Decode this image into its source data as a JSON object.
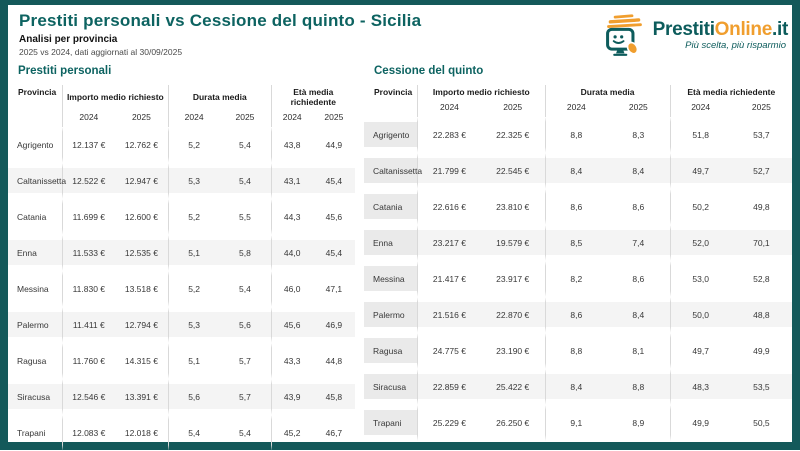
{
  "page": {
    "title": "Prestiti personali vs Cessione del quinto - Sicilia",
    "subtitle": "Analisi per provincia",
    "note": "2025 vs 2024, dati aggiornati al 30/09/2025"
  },
  "logo": {
    "brand_prefix": "Prestiti",
    "brand_highlight": "Online",
    "brand_suffix": ".it",
    "tagline": "Più scelta, più risparmio",
    "mascot_icon": "smiley-monitor-with-mouse-icon"
  },
  "colors": {
    "teal": "#0d6361",
    "border_teal": "#14595a",
    "orange": "#f09e2e",
    "row_stripe": "#f4f4f4",
    "province_column_bg": "#eaeaea",
    "separator": "#d9d9d9"
  },
  "tables": [
    {
      "title": "Prestiti personali",
      "columns": {
        "province": "Provincia",
        "groups": [
          "Importo medio richiesto",
          "Durata media",
          "Età media richiedente"
        ],
        "years": [
          "2024",
          "2025"
        ]
      },
      "rows": [
        {
          "province": "Agrigento",
          "values": [
            "12.137 €",
            "12.762 €",
            "5,2",
            "5,4",
            "43,8",
            "44,9"
          ]
        },
        {
          "province": "Caltanissetta",
          "values": [
            "12.522 €",
            "12.947 €",
            "5,3",
            "5,4",
            "43,1",
            "45,4"
          ]
        },
        {
          "province": "Catania",
          "values": [
            "11.699 €",
            "12.600 €",
            "5,2",
            "5,5",
            "44,3",
            "45,6"
          ]
        },
        {
          "province": "Enna",
          "values": [
            "11.533 €",
            "12.535 €",
            "5,1",
            "5,8",
            "44,0",
            "45,4"
          ]
        },
        {
          "province": "Messina",
          "values": [
            "11.830 €",
            "13.518 €",
            "5,2",
            "5,4",
            "46,0",
            "47,1"
          ]
        },
        {
          "province": "Palermo",
          "values": [
            "11.411 €",
            "12.794 €",
            "5,3",
            "5,6",
            "45,6",
            "46,9"
          ]
        },
        {
          "province": "Ragusa",
          "values": [
            "11.760 €",
            "14.315 €",
            "5,1",
            "5,7",
            "43,3",
            "44,8"
          ]
        },
        {
          "province": "Siracusa",
          "values": [
            "12.546 €",
            "13.391 €",
            "5,6",
            "5,7",
            "43,9",
            "45,8"
          ]
        },
        {
          "province": "Trapani",
          "values": [
            "12.083 €",
            "12.018 €",
            "5,4",
            "5,4",
            "45,2",
            "46,7"
          ]
        }
      ]
    },
    {
      "title": "Cessione del quinto",
      "columns": {
        "province": "Provincia",
        "groups": [
          "Importo medio richiesto",
          "Durata media",
          "Età media richiedente"
        ],
        "years": [
          "2024",
          "2025"
        ]
      },
      "rows": [
        {
          "province": "Agrigento",
          "values": [
            "22.283 €",
            "22.325 €",
            "8,8",
            "8,3",
            "51,8",
            "53,7"
          ]
        },
        {
          "province": "Caltanissetta",
          "values": [
            "21.799 €",
            "22.545 €",
            "8,4",
            "8,4",
            "49,7",
            "52,7"
          ]
        },
        {
          "province": "Catania",
          "values": [
            "22.616 €",
            "23.810 €",
            "8,6",
            "8,6",
            "50,2",
            "49,8"
          ]
        },
        {
          "province": "Enna",
          "values": [
            "23.217 €",
            "19.579 €",
            "8,5",
            "7,4",
            "52,0",
            "70,1"
          ]
        },
        {
          "province": "Messina",
          "values": [
            "21.417 €",
            "23.917 €",
            "8,2",
            "8,6",
            "53,0",
            "52,8"
          ]
        },
        {
          "province": "Palermo",
          "values": [
            "21.516 €",
            "22.870 €",
            "8,6",
            "8,4",
            "50,0",
            "48,8"
          ]
        },
        {
          "province": "Ragusa",
          "values": [
            "24.775 €",
            "23.190 €",
            "8,8",
            "8,1",
            "49,7",
            "49,9"
          ]
        },
        {
          "province": "Siracusa",
          "values": [
            "22.859 €",
            "25.422 €",
            "8,4",
            "8,8",
            "48,3",
            "53,5"
          ]
        },
        {
          "province": "Trapani",
          "values": [
            "25.229 €",
            "26.250 €",
            "9,1",
            "8,9",
            "49,9",
            "50,5"
          ]
        }
      ]
    }
  ]
}
